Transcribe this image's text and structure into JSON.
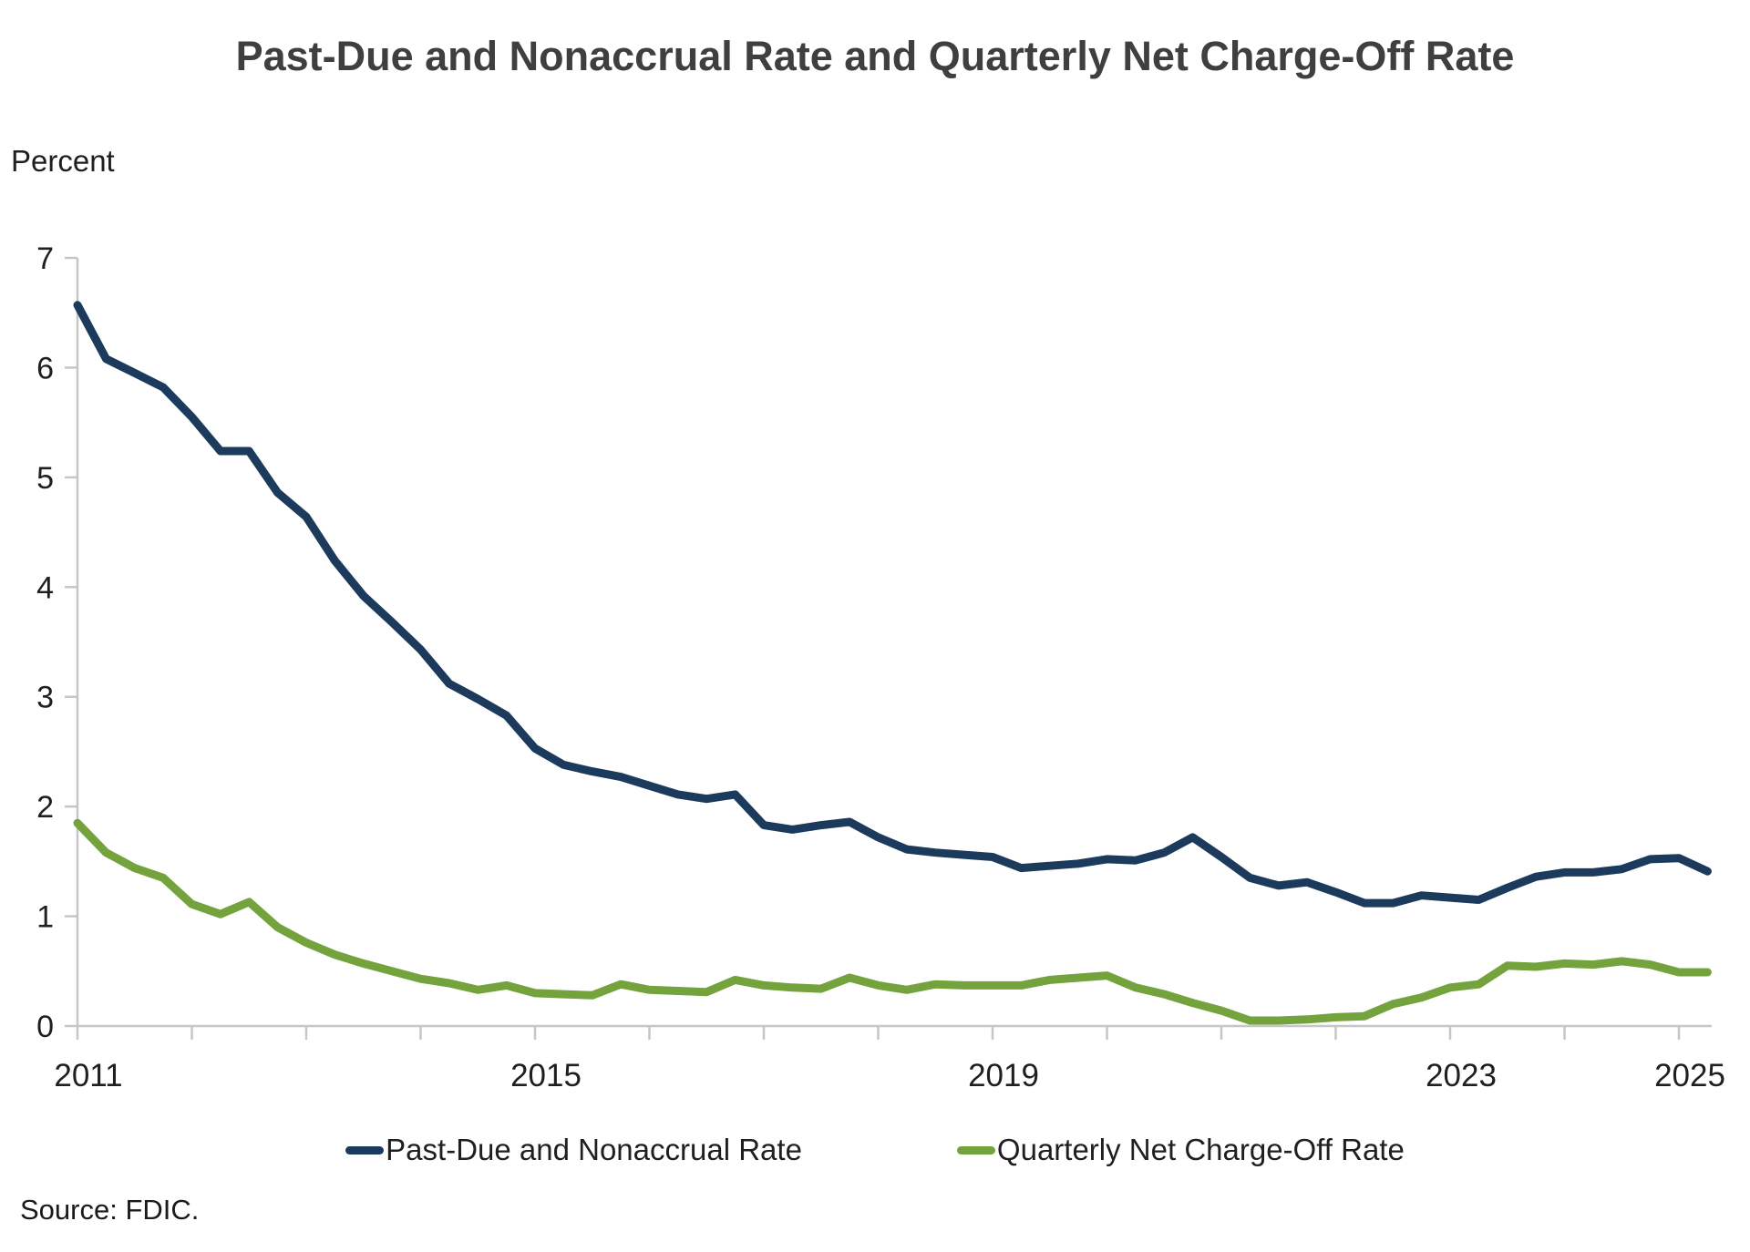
{
  "title": "Past-Due and Nonaccrual Rate and Quarterly Net Charge-Off Rate",
  "y_axis_label": "Percent",
  "source": "Source: FDIC.",
  "colors": {
    "past_due": "#1B3A5C",
    "charge_off": "#74A23D",
    "axis": "#C6C6C6",
    "tick_text": "#1f1f1f",
    "title_text": "#3f3f3f"
  },
  "chart_data": {
    "type": "line",
    "title": "Past-Due and Nonaccrual Rate and Quarterly Net Charge-Off Rate",
    "ylabel": "Percent",
    "ylim": [
      0,
      7
    ],
    "y_ticks": [
      0,
      1,
      2,
      3,
      4,
      5,
      6,
      7
    ],
    "x_start_year": 2011,
    "frequency": "quarterly",
    "x_tick_years": [
      2011,
      2012,
      2013,
      2014,
      2015,
      2016,
      2017,
      2018,
      2019,
      2020,
      2021,
      2022,
      2023,
      2024,
      2025
    ],
    "x_label_years": [
      2011,
      2015,
      2019,
      2023,
      2025
    ],
    "grid": false,
    "legend_position": "bottom",
    "series": [
      {
        "name": "Past-Due and Nonaccrual Rate",
        "color_key": "past_due",
        "values": [
          6.57,
          6.08,
          5.95,
          5.82,
          5.55,
          5.24,
          5.24,
          4.86,
          4.64,
          4.24,
          3.92,
          3.68,
          3.43,
          3.12,
          2.98,
          2.83,
          2.53,
          2.38,
          2.32,
          2.27,
          2.19,
          2.11,
          2.07,
          2.11,
          1.83,
          1.79,
          1.83,
          1.86,
          1.72,
          1.61,
          1.58,
          1.56,
          1.54,
          1.44,
          1.46,
          1.48,
          1.52,
          1.51,
          1.58,
          1.72,
          1.54,
          1.35,
          1.28,
          1.31,
          1.22,
          1.12,
          1.12,
          1.19,
          1.17,
          1.15,
          1.26,
          1.36,
          1.4,
          1.4,
          1.43,
          1.52,
          1.53,
          1.41
        ]
      },
      {
        "name": "Quarterly Net Charge-Off Rate",
        "color_key": "charge_off",
        "values": [
          1.85,
          1.58,
          1.44,
          1.35,
          1.11,
          1.02,
          1.13,
          0.9,
          0.76,
          0.65,
          0.57,
          0.5,
          0.43,
          0.39,
          0.33,
          0.37,
          0.3,
          0.29,
          0.28,
          0.38,
          0.33,
          0.32,
          0.31,
          0.42,
          0.37,
          0.35,
          0.34,
          0.44,
          0.37,
          0.33,
          0.38,
          0.37,
          0.37,
          0.37,
          0.42,
          0.44,
          0.46,
          0.35,
          0.29,
          0.21,
          0.14,
          0.05,
          0.05,
          0.06,
          0.08,
          0.09,
          0.2,
          0.26,
          0.35,
          0.38,
          0.55,
          0.54,
          0.57,
          0.56,
          0.59,
          0.56,
          0.49,
          0.49
        ]
      }
    ]
  }
}
